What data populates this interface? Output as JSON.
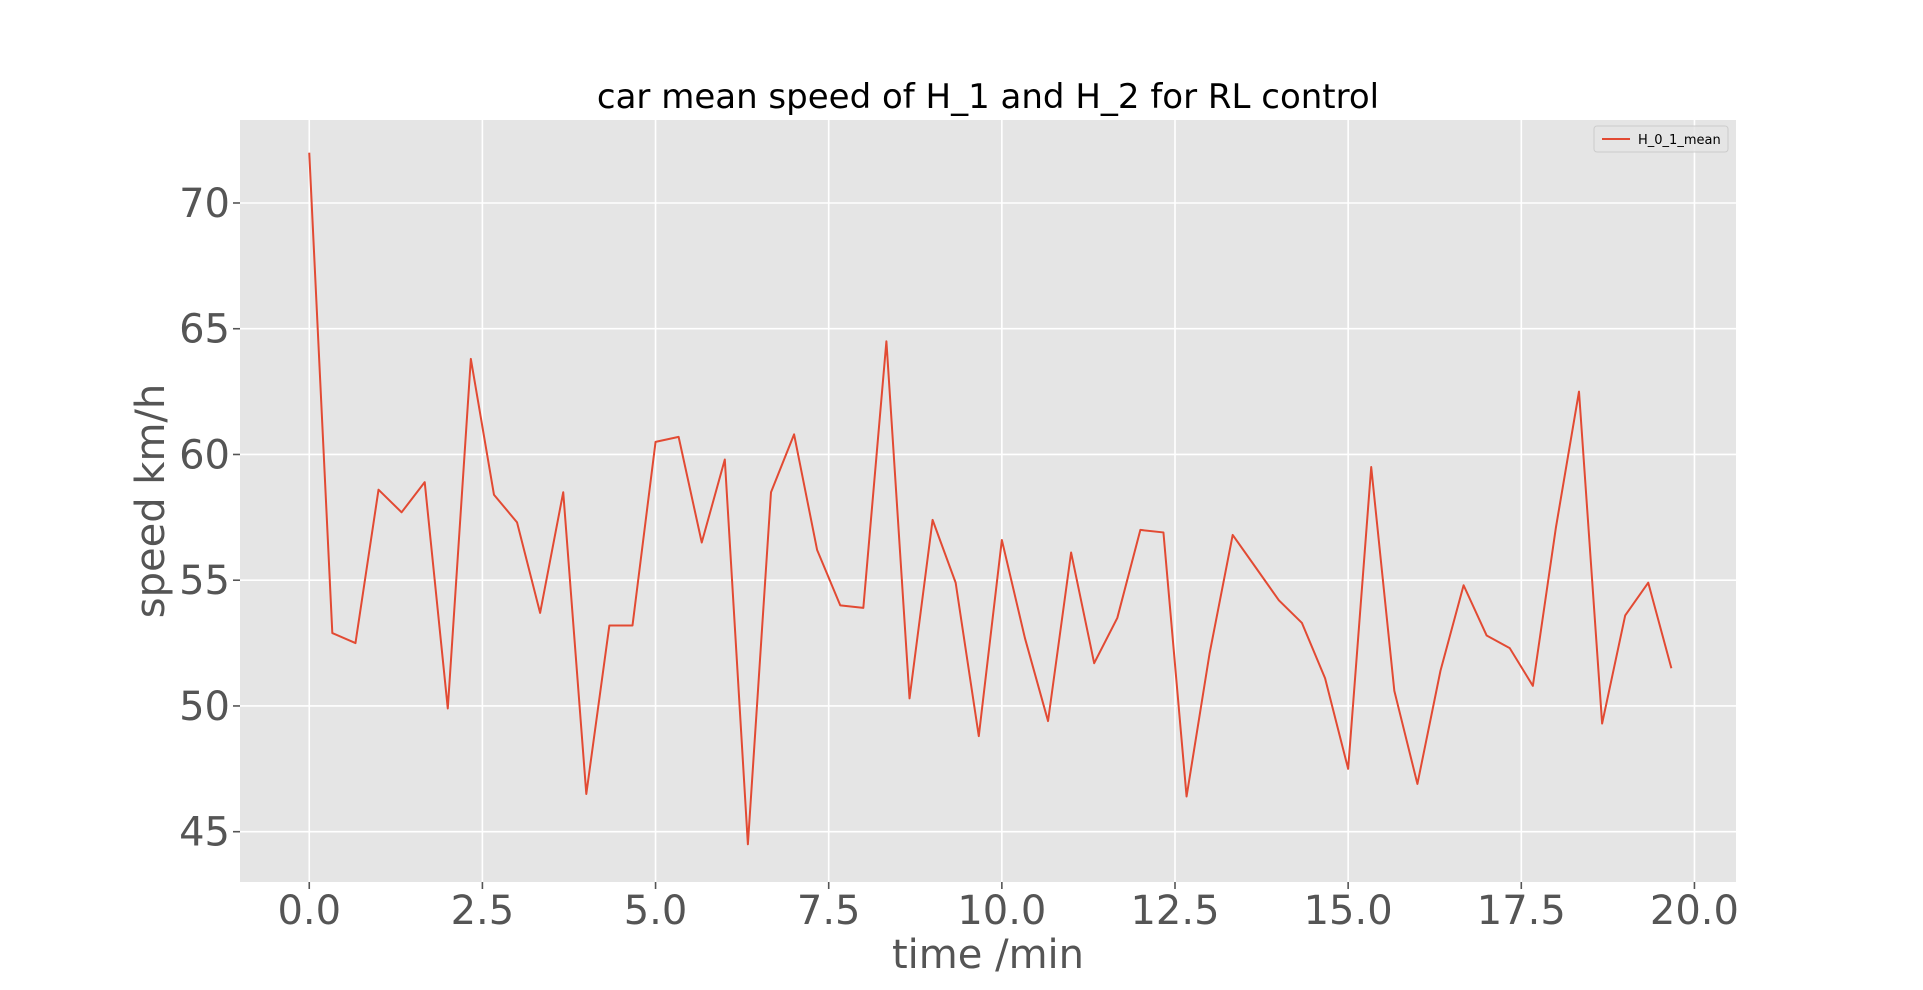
{
  "chart_data": {
    "type": "line",
    "title": "car mean speed of H_1 and H_2 for RL control",
    "xlabel": "time /min",
    "ylabel": "speed km/h",
    "xlim": [
      -1.0,
      20.6
    ],
    "ylim": [
      43.0,
      73.3
    ],
    "x_ticks": [
      0.0,
      2.5,
      5.0,
      7.5,
      10.0,
      12.5,
      15.0,
      17.5,
      20.0
    ],
    "x_tick_labels": [
      "0.0",
      "2.5",
      "5.0",
      "7.5",
      "10.0",
      "12.5",
      "15.0",
      "17.5",
      "20.0"
    ],
    "y_ticks": [
      45,
      50,
      55,
      60,
      65,
      70
    ],
    "y_tick_labels": [
      "45",
      "50",
      "55",
      "60",
      "65",
      "70"
    ],
    "grid": true,
    "legend_position": "top-right",
    "background_color": "#e5e5e5",
    "line_color": "#e24a33",
    "series": [
      {
        "name": "H_0_1_mean",
        "x": [
          0.0,
          0.333,
          0.667,
          1.0,
          1.333,
          1.667,
          2.0,
          2.333,
          2.667,
          3.0,
          3.333,
          3.667,
          4.0,
          4.333,
          4.667,
          5.0,
          5.333,
          5.667,
          6.0,
          6.333,
          6.667,
          7.0,
          7.333,
          7.667,
          8.0,
          8.333,
          8.667,
          9.0,
          9.333,
          9.667,
          10.0,
          10.333,
          10.667,
          11.0,
          11.333,
          11.667,
          12.0,
          12.333,
          12.667,
          13.0,
          13.333,
          13.667,
          14.0,
          14.333,
          14.667,
          15.0,
          15.333,
          15.667,
          16.0,
          16.333,
          16.667,
          17.0,
          17.333,
          17.667,
          18.0,
          18.333,
          18.667,
          19.0,
          19.333,
          19.667
        ],
        "values": [
          72.0,
          52.9,
          52.5,
          58.6,
          57.7,
          58.9,
          49.9,
          63.8,
          58.4,
          57.3,
          53.7,
          58.5,
          46.5,
          53.2,
          53.2,
          60.5,
          60.7,
          56.5,
          59.8,
          44.5,
          58.5,
          60.8,
          56.2,
          54.0,
          53.9,
          64.5,
          50.3,
          57.4,
          54.9,
          48.8,
          56.6,
          52.7,
          49.4,
          56.1,
          51.7,
          53.5,
          57.0,
          56.9,
          46.4,
          52.1,
          56.8,
          55.5,
          54.2,
          53.3,
          51.1,
          47.5,
          59.5,
          50.6,
          46.9,
          51.4,
          54.8,
          52.8,
          52.3,
          50.8,
          57.1,
          62.5,
          49.3,
          53.6,
          54.9,
          51.5
        ]
      }
    ]
  }
}
